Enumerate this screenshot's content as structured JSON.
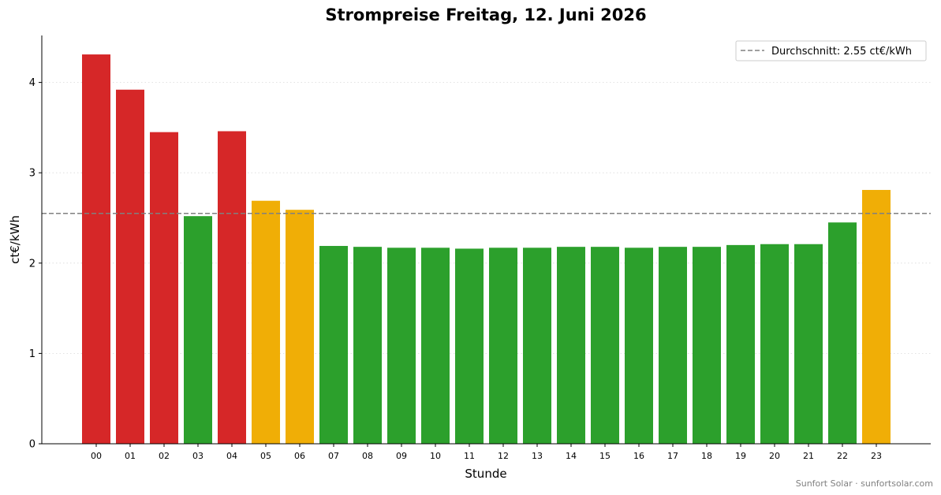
{
  "chart_data": {
    "type": "bar",
    "title": "Strompreise Freitag, 12. Juni 2026",
    "xlabel": "Stunde",
    "ylabel": "ct€/kWh",
    "categories": [
      "00",
      "01",
      "02",
      "03",
      "04",
      "05",
      "06",
      "07",
      "08",
      "09",
      "10",
      "11",
      "12",
      "13",
      "14",
      "15",
      "16",
      "17",
      "18",
      "19",
      "20",
      "21",
      "22",
      "23"
    ],
    "values": [
      4.31,
      3.92,
      3.45,
      2.52,
      3.46,
      2.69,
      2.59,
      2.19,
      2.18,
      2.17,
      2.17,
      2.16,
      2.17,
      2.17,
      2.18,
      2.18,
      2.17,
      2.18,
      2.18,
      2.2,
      2.21,
      2.21,
      2.45,
      2.81
    ],
    "bar_colors": [
      "#d62728",
      "#d62728",
      "#d62728",
      "#2ca02c",
      "#d62728",
      "#f0ae06",
      "#f0ae06",
      "#2ca02c",
      "#2ca02c",
      "#2ca02c",
      "#2ca02c",
      "#2ca02c",
      "#2ca02c",
      "#2ca02c",
      "#2ca02c",
      "#2ca02c",
      "#2ca02c",
      "#2ca02c",
      "#2ca02c",
      "#2ca02c",
      "#2ca02c",
      "#2ca02c",
      "#2ca02c",
      "#f0ae06"
    ],
    "ylim": [
      0,
      4.52
    ],
    "yticks": [
      0,
      1,
      2,
      3,
      4
    ],
    "grid": "y-dotted",
    "average": {
      "value": 2.55,
      "label": "Durchschnitt: 2.55 ct€/kWh",
      "color": "#808080",
      "style": "dashed"
    },
    "legend": {
      "placement": "top-right"
    },
    "credit": "Sunfort Solar · sunfortsolar.com"
  }
}
